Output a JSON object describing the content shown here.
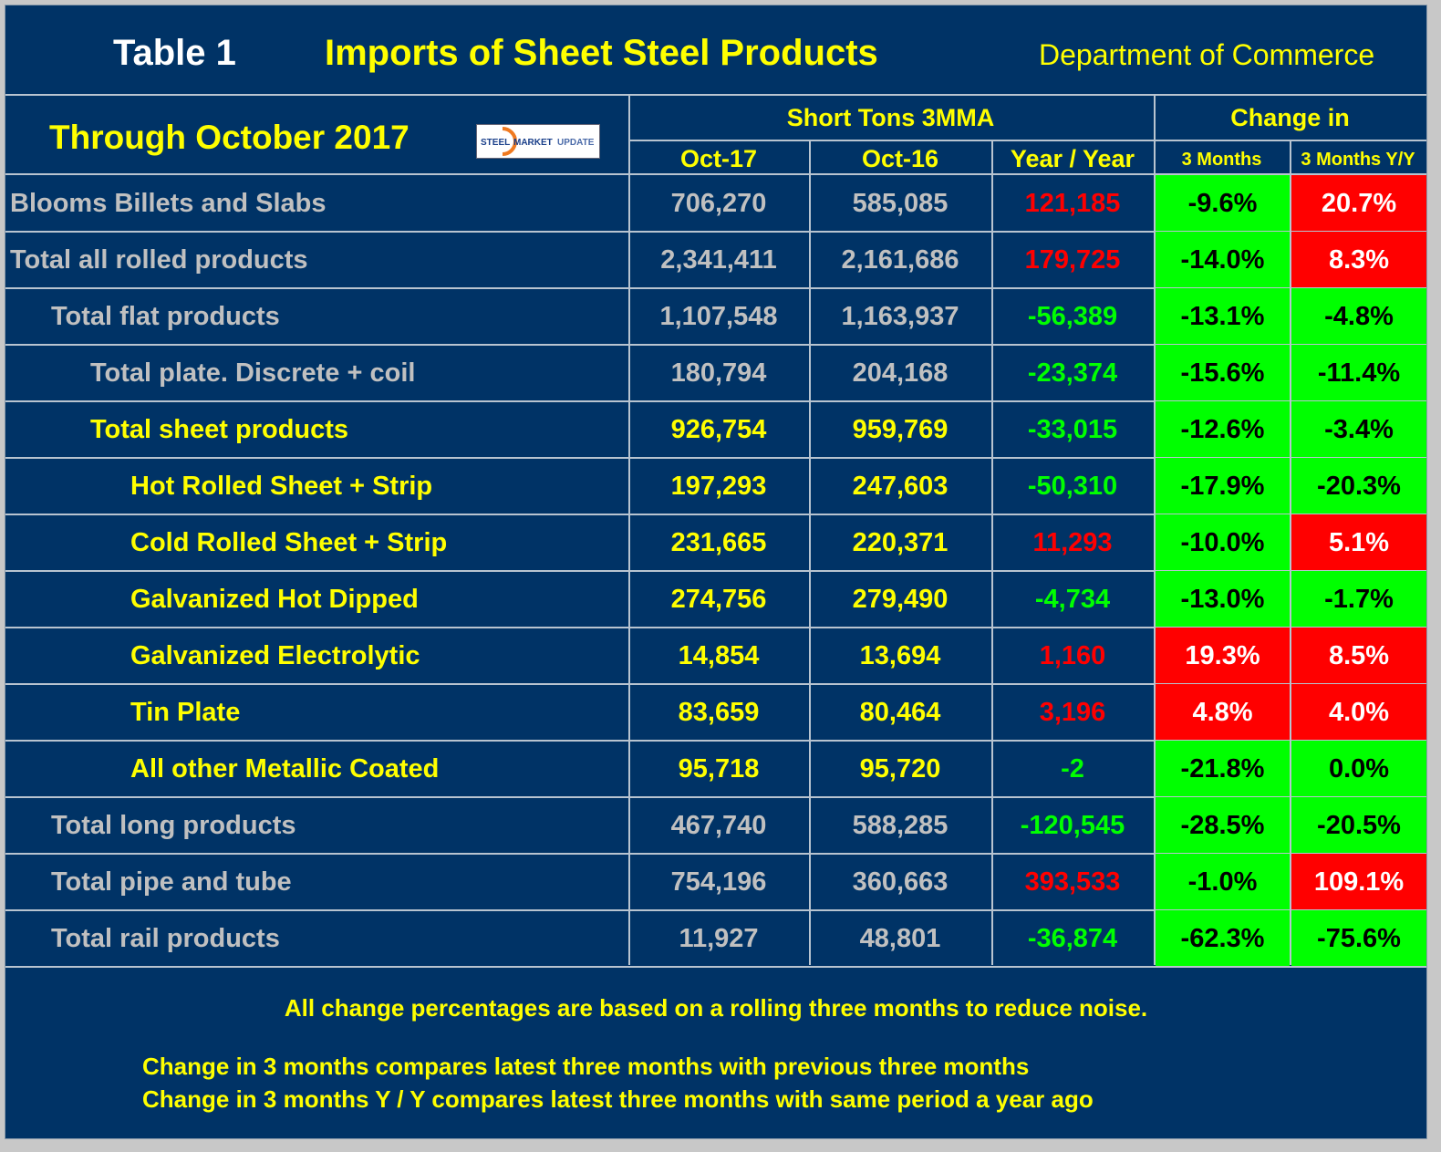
{
  "header": {
    "table_label": "Table 1",
    "title": "Imports of Sheet Steel Products",
    "source": "Department of Commerce",
    "period": "Through October 2017",
    "logo_text": "STEEL MARKET UPDATE",
    "group_short_tons": "Short Tons 3MMA",
    "group_change": "Change in",
    "col_oct17": "Oct-17",
    "col_oct16": "Oct-16",
    "col_yoy": "Year / Year",
    "col_3m": "3 Months",
    "col_3m_yy": "3 Months Y/Y"
  },
  "colors": {
    "background": "#003366",
    "yellow": "#ffff00",
    "gray_text": "#c0c0c0",
    "positive_red": "#ff0000",
    "negative_green": "#00ff00"
  },
  "chart_data": {
    "type": "table",
    "columns": [
      "Oct-17",
      "Oct-16",
      "Year / Year",
      "3 Months",
      "3 Months Y/Y"
    ],
    "rows": [
      {
        "label": "Blooms Billets and Slabs",
        "level": 0,
        "style": "gray",
        "oct17": "706,270",
        "oct16": "585,085",
        "yoy": "121,185",
        "yoy_sign": "up",
        "m3": "-9.6%",
        "m3_sign": "down",
        "yy": "20.7%",
        "yy_sign": "up"
      },
      {
        "label": "Total all rolled products",
        "level": 0,
        "style": "gray",
        "oct17": "2,341,411",
        "oct16": "2,161,686",
        "yoy": "179,725",
        "yoy_sign": "up",
        "m3": "-14.0%",
        "m3_sign": "down",
        "yy": "8.3%",
        "yy_sign": "up"
      },
      {
        "label": "Total flat products",
        "level": 1,
        "style": "gray",
        "oct17": "1,107,548",
        "oct16": "1,163,937",
        "yoy": "-56,389",
        "yoy_sign": "down",
        "m3": "-13.1%",
        "m3_sign": "down",
        "yy": "-4.8%",
        "yy_sign": "down"
      },
      {
        "label": "Total plate. Discrete + coil",
        "level": 2,
        "style": "gray",
        "oct17": "180,794",
        "oct16": "204,168",
        "yoy": "-23,374",
        "yoy_sign": "down",
        "m3": "-15.6%",
        "m3_sign": "down",
        "yy": "-11.4%",
        "yy_sign": "down"
      },
      {
        "label": "Total sheet products",
        "level": 2,
        "style": "yellow",
        "oct17": "926,754",
        "oct16": "959,769",
        "yoy": "-33,015",
        "yoy_sign": "down",
        "m3": "-12.6%",
        "m3_sign": "down",
        "yy": "-3.4%",
        "yy_sign": "down"
      },
      {
        "label": "Hot Rolled Sheet + Strip",
        "level": 3,
        "style": "yellow",
        "oct17": "197,293",
        "oct16": "247,603",
        "yoy": "-50,310",
        "yoy_sign": "down",
        "m3": "-17.9%",
        "m3_sign": "down",
        "yy": "-20.3%",
        "yy_sign": "down"
      },
      {
        "label": "Cold Rolled Sheet + Strip",
        "level": 3,
        "style": "yellow",
        "oct17": "231,665",
        "oct16": "220,371",
        "yoy": "11,293",
        "yoy_sign": "up",
        "m3": "-10.0%",
        "m3_sign": "down",
        "yy": "5.1%",
        "yy_sign": "up"
      },
      {
        "label": "Galvanized Hot Dipped",
        "level": 3,
        "style": "yellow",
        "oct17": "274,756",
        "oct16": "279,490",
        "yoy": "-4,734",
        "yoy_sign": "down",
        "m3": "-13.0%",
        "m3_sign": "down",
        "yy": "-1.7%",
        "yy_sign": "down"
      },
      {
        "label": "Galvanized Electrolytic",
        "level": 3,
        "style": "yellow",
        "oct17": "14,854",
        "oct16": "13,694",
        "yoy": "1,160",
        "yoy_sign": "up",
        "m3": "19.3%",
        "m3_sign": "up",
        "yy": "8.5%",
        "yy_sign": "up"
      },
      {
        "label": "Tin Plate",
        "level": 3,
        "style": "yellow",
        "oct17": "83,659",
        "oct16": "80,464",
        "yoy": "3,196",
        "yoy_sign": "up",
        "m3": "4.8%",
        "m3_sign": "up",
        "yy": "4.0%",
        "yy_sign": "up"
      },
      {
        "label": "All other Metallic Coated",
        "level": 3,
        "style": "yellow",
        "oct17": "95,718",
        "oct16": "95,720",
        "yoy": "-2",
        "yoy_sign": "down",
        "m3": "-21.8%",
        "m3_sign": "down",
        "yy": "0.0%",
        "yy_sign": "down"
      },
      {
        "label": "Total long products",
        "level": 1,
        "style": "gray",
        "oct17": "467,740",
        "oct16": "588,285",
        "yoy": "-120,545",
        "yoy_sign": "down",
        "m3": "-28.5%",
        "m3_sign": "down",
        "yy": "-20.5%",
        "yy_sign": "down"
      },
      {
        "label": "Total pipe and tube",
        "level": 1,
        "style": "gray",
        "oct17": "754,196",
        "oct16": "360,663",
        "yoy": "393,533",
        "yoy_sign": "up",
        "m3": "-1.0%",
        "m3_sign": "down",
        "yy": "109.1%",
        "yy_sign": "up"
      },
      {
        "label": "Total rail products",
        "level": 1,
        "style": "gray",
        "oct17": "11,927",
        "oct16": "48,801",
        "yoy": "-36,874",
        "yoy_sign": "down",
        "m3": "-62.3%",
        "m3_sign": "down",
        "yy": "-75.6%",
        "yy_sign": "down"
      }
    ]
  },
  "footer": {
    "note1": "All change percentages are based on a rolling three months to reduce noise.",
    "note2": "Change in 3 months compares latest three months with previous three months",
    "note3": "Change in 3 months  Y / Y compares latest three months with same period a year ago"
  }
}
